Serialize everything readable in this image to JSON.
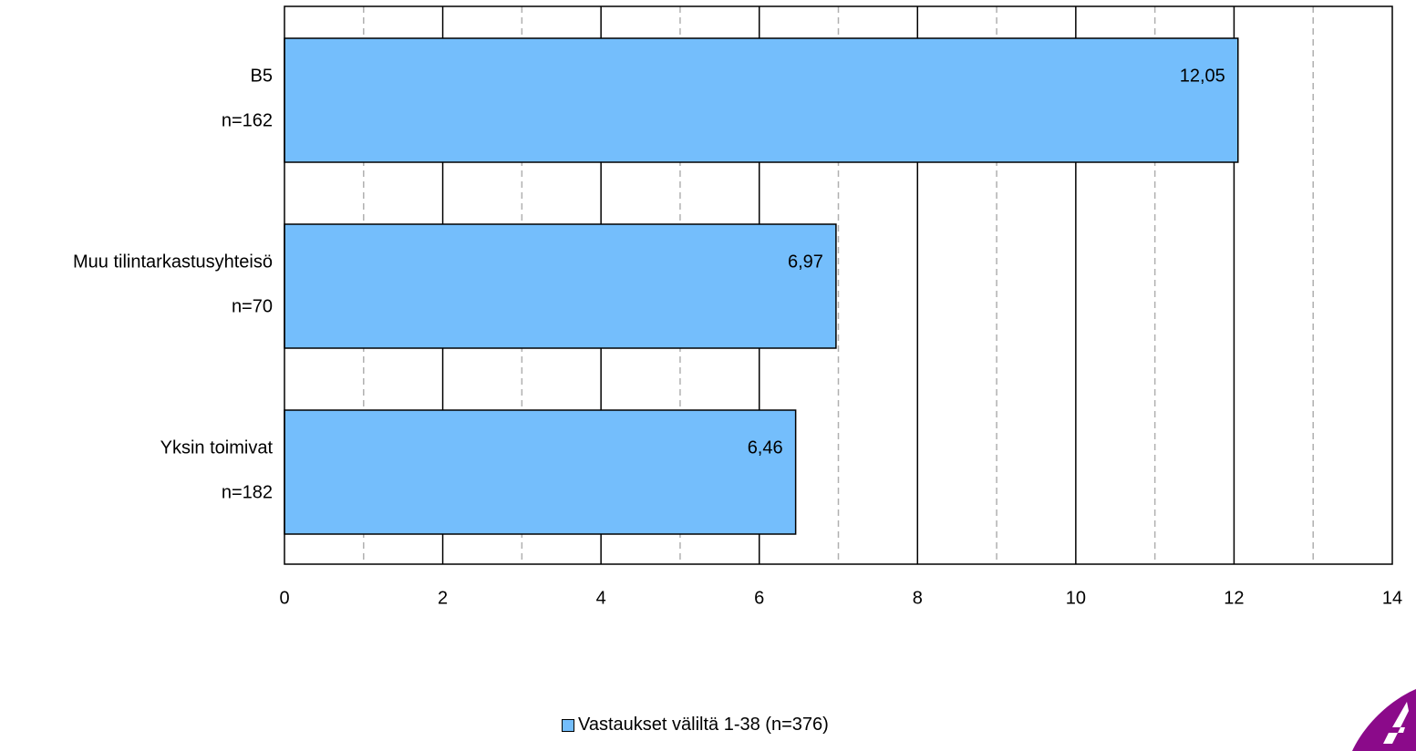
{
  "chart_data": {
    "type": "bar",
    "orientation": "horizontal",
    "categories": [
      {
        "name": "B5",
        "n": "n=162"
      },
      {
        "name": "Muu tilintarkastusyhteisö",
        "n": "n=70"
      },
      {
        "name": "Yksin toimivat",
        "n": "n=182"
      }
    ],
    "series": [
      {
        "name": "Vastaukset väliltä 1-38 (n=376)",
        "values": [
          12.05,
          6.97,
          6.46
        ],
        "labels": [
          "12,05",
          "6,97",
          "6,46"
        ]
      }
    ],
    "xlim": [
      0,
      14
    ],
    "xticks": [
      0,
      2,
      4,
      6,
      8,
      10,
      12,
      14
    ],
    "minor_gridlines": [
      1,
      3,
      5,
      7,
      9,
      11,
      13
    ],
    "grid": true,
    "legend_position": "bottom",
    "colors": {
      "bar": "#74BEFC",
      "bar_border": "#000000",
      "logo": "#8B0A8A"
    }
  },
  "legend": {
    "label": "Vastaukset väliltä 1-38 (n=376)"
  }
}
